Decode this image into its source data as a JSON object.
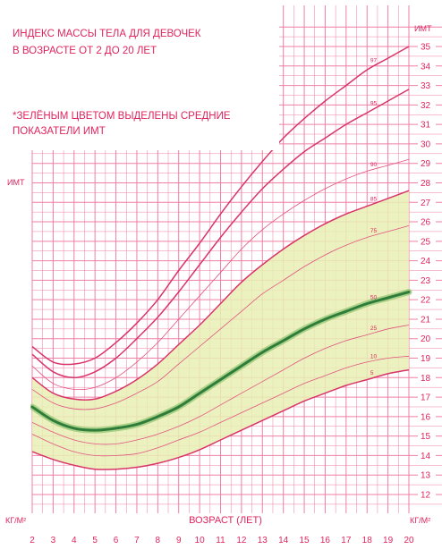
{
  "chart_data": {
    "type": "line",
    "title_line1": "ИНДЕКС МАССЫ ТЕЛА ДЛЯ ДЕВОЧЕК",
    "title_line2": "В ВОЗРАСТЕ ОТ 2 ДО 20 ЛЕТ",
    "note_line1": "*ЗЕЛЁНЫМ ЦВЕТОМ ВЫДЕЛЕНЫ СРЕДНИЕ",
    "note_line2": "ПОКАЗАТЕЛИ ИМТ",
    "ylabel": "ИМТ",
    "unit_label": "КГ/М²",
    "xlabel": "ВОЗРАСТ (ЛЕТ)",
    "xlim": [
      2,
      20
    ],
    "ylim": [
      11,
      36
    ],
    "x_ticks": [
      2,
      3,
      4,
      5,
      6,
      7,
      8,
      9,
      10,
      11,
      12,
      13,
      14,
      15,
      16,
      17,
      18,
      19,
      20
    ],
    "y_ticks_left": [
      12,
      13,
      14,
      15,
      16,
      17,
      18,
      19,
      20,
      21,
      22,
      23,
      24,
      25,
      26,
      27
    ],
    "y_ticks_right": [
      12,
      13,
      14,
      15,
      16,
      17,
      18,
      19,
      20,
      21,
      22,
      23,
      24,
      25,
      26,
      27,
      28,
      29,
      30,
      31,
      32,
      33,
      34,
      35
    ],
    "grid": true,
    "x": [
      2,
      3,
      4,
      5,
      6,
      7,
      8,
      9,
      10,
      11,
      12,
      13,
      14,
      15,
      16,
      17,
      18,
      19,
      20
    ],
    "series": [
      {
        "name": "97",
        "values": [
          19.6,
          18.8,
          18.7,
          19.0,
          19.8,
          20.8,
          22.0,
          23.5,
          24.9,
          26.4,
          27.8,
          29.1,
          30.3,
          31.3,
          32.2,
          33.0,
          33.8,
          34.4,
          35.0
        ]
      },
      {
        "name": "95",
        "values": [
          19.2,
          18.3,
          18.0,
          18.3,
          19.0,
          20.0,
          21.1,
          22.4,
          23.8,
          25.2,
          26.5,
          27.7,
          28.7,
          29.6,
          30.3,
          31.0,
          31.6,
          32.2,
          32.8
        ]
      },
      {
        "name": "90",
        "values": [
          18.6,
          17.7,
          17.4,
          17.5,
          18.0,
          18.8,
          19.8,
          21.0,
          22.2,
          23.4,
          24.6,
          25.6,
          26.4,
          27.1,
          27.7,
          28.2,
          28.6,
          28.9,
          29.2
        ]
      },
      {
        "name": "85",
        "values": [
          18.0,
          17.2,
          16.9,
          16.9,
          17.3,
          17.9,
          18.7,
          19.7,
          20.7,
          21.8,
          22.9,
          23.8,
          24.6,
          25.3,
          25.9,
          26.4,
          26.8,
          27.2,
          27.6
        ]
      },
      {
        "name": "75",
        "values": [
          17.4,
          16.7,
          16.4,
          16.4,
          16.7,
          17.2,
          17.8,
          18.7,
          19.6,
          20.5,
          21.4,
          22.3,
          23.0,
          23.7,
          24.3,
          24.8,
          25.2,
          25.5,
          25.8
        ]
      },
      {
        "name": "50",
        "values": [
          16.5,
          15.8,
          15.4,
          15.3,
          15.4,
          15.6,
          16.0,
          16.5,
          17.2,
          17.9,
          18.6,
          19.3,
          19.9,
          20.5,
          21.0,
          21.4,
          21.8,
          22.1,
          22.4
        ]
      },
      {
        "name": "25",
        "values": [
          15.7,
          15.2,
          14.8,
          14.6,
          14.6,
          14.8,
          15.1,
          15.5,
          16.0,
          16.6,
          17.2,
          17.8,
          18.4,
          19.0,
          19.5,
          19.9,
          20.2,
          20.5,
          20.7
        ]
      },
      {
        "name": "10",
        "values": [
          15.1,
          14.6,
          14.2,
          14.0,
          14.0,
          14.1,
          14.4,
          14.8,
          15.2,
          15.7,
          16.2,
          16.7,
          17.2,
          17.7,
          18.1,
          18.5,
          18.8,
          19.0,
          19.1
        ]
      },
      {
        "name": "5",
        "values": [
          14.2,
          13.8,
          13.5,
          13.3,
          13.3,
          13.4,
          13.6,
          13.9,
          14.3,
          14.8,
          15.3,
          15.8,
          16.3,
          16.8,
          17.2,
          17.6,
          17.9,
          18.2,
          18.4
        ]
      }
    ],
    "highlight_band": {
      "lower_percentile": "5",
      "upper_percentile": "85",
      "color": "#e8f0b4"
    },
    "median_series": "50",
    "colors": {
      "grid": "#ef7fa3",
      "curve": "#d9346a",
      "thin_curve": "#e0557f",
      "median": "#2e7d3a",
      "median_glow": "#9cc87a",
      "text": "#e0245e",
      "band": "#e8f0b4"
    }
  }
}
